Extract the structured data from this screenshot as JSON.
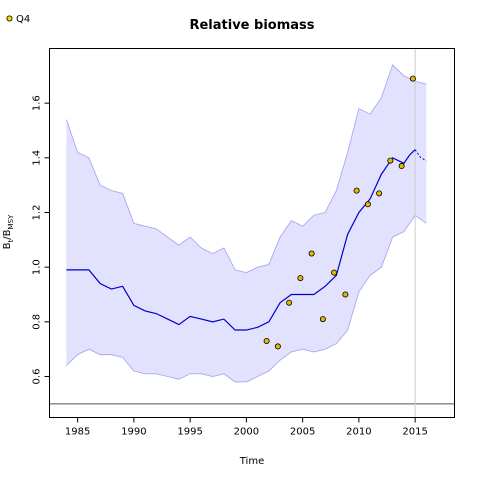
{
  "chart_data": {
    "type": "line",
    "title": "Relative biomass",
    "xlabel": "Time",
    "ylabel": "B",
    "ylabel_sub1": "t",
    "ylabel_mid": "/B",
    "ylabel_sub2": "MSY",
    "xlim": [
      1982.5,
      2018.5
    ],
    "ylim": [
      0.45,
      1.8
    ],
    "x_ticks": [
      1985,
      1990,
      1995,
      2000,
      2005,
      2010,
      2015
    ],
    "y_ticks": [
      0.6,
      0.8,
      1.0,
      1.2,
      1.4,
      1.6
    ],
    "grid": false,
    "legend": {
      "position": "top-left",
      "entries": [
        {
          "label": "Q4",
          "marker": "circle",
          "color": "#ffd700"
        }
      ]
    },
    "reference_line_y": 0.5,
    "reference_line_y_color": "#555555",
    "reference_line_x": 2015,
    "reference_line_x_color": "#cccccc",
    "band_fill_color": "#e2e2fe",
    "band_line_color": "#a8a8f0",
    "median_color": "#0000cc",
    "marker_fill_color": "#e8b800",
    "median": {
      "x": [
        1984,
        1985,
        1986,
        1987,
        1988,
        1989,
        1990,
        1991,
        1992,
        1993,
        1994,
        1995,
        1996,
        1997,
        1998,
        1999,
        2000,
        2001,
        2002,
        2003,
        2004,
        2005,
        2006,
        2007,
        2008,
        2009,
        2010,
        2011,
        2012,
        2013,
        2014,
        2014.5,
        2015
      ],
      "y": [
        0.99,
        0.99,
        0.99,
        0.94,
        0.92,
        0.93,
        0.86,
        0.84,
        0.83,
        0.81,
        0.79,
        0.82,
        0.81,
        0.8,
        0.81,
        0.77,
        0.77,
        0.78,
        0.8,
        0.87,
        0.9,
        0.9,
        0.9,
        0.93,
        0.97,
        1.12,
        1.2,
        1.25,
        1.34,
        1.4,
        1.38,
        1.41,
        1.43
      ]
    },
    "projection": {
      "x": [
        2015,
        2015.5,
        2016
      ],
      "y": [
        1.43,
        1.4,
        1.39
      ]
    },
    "band": {
      "x": [
        1984,
        1985,
        1986,
        1987,
        1988,
        1989,
        1990,
        1991,
        1992,
        1993,
        1994,
        1995,
        1996,
        1997,
        1998,
        1999,
        2000,
        2001,
        2002,
        2003,
        2004,
        2005,
        2006,
        2007,
        2008,
        2009,
        2010,
        2011,
        2012,
        2013,
        2014,
        2015,
        2016
      ],
      "upper": [
        1.54,
        1.42,
        1.4,
        1.3,
        1.28,
        1.27,
        1.16,
        1.15,
        1.14,
        1.11,
        1.08,
        1.11,
        1.07,
        1.05,
        1.07,
        0.99,
        0.98,
        1.0,
        1.01,
        1.11,
        1.17,
        1.15,
        1.19,
        1.2,
        1.28,
        1.42,
        1.58,
        1.56,
        1.62,
        1.74,
        1.7,
        1.68,
        1.67
      ],
      "lower": [
        0.64,
        0.68,
        0.7,
        0.68,
        0.68,
        0.67,
        0.62,
        0.61,
        0.61,
        0.6,
        0.59,
        0.61,
        0.61,
        0.6,
        0.61,
        0.58,
        0.58,
        0.6,
        0.62,
        0.66,
        0.69,
        0.7,
        0.69,
        0.7,
        0.72,
        0.77,
        0.91,
        0.97,
        1.0,
        1.11,
        1.13,
        1.19,
        1.16
      ]
    },
    "series": [
      {
        "name": "Q4",
        "x": [
          2001.8,
          2002.8,
          2003.8,
          2004.8,
          2005.8,
          2006.8,
          2007.8,
          2008.8,
          2009.8,
          2010.8,
          2011.8,
          2012.8,
          2013.8,
          2014.8
        ],
        "y": [
          0.73,
          0.71,
          0.87,
          0.96,
          1.05,
          0.81,
          0.98,
          0.9,
          1.28,
          1.23,
          1.27,
          1.39,
          1.37,
          1.69
        ]
      }
    ]
  }
}
